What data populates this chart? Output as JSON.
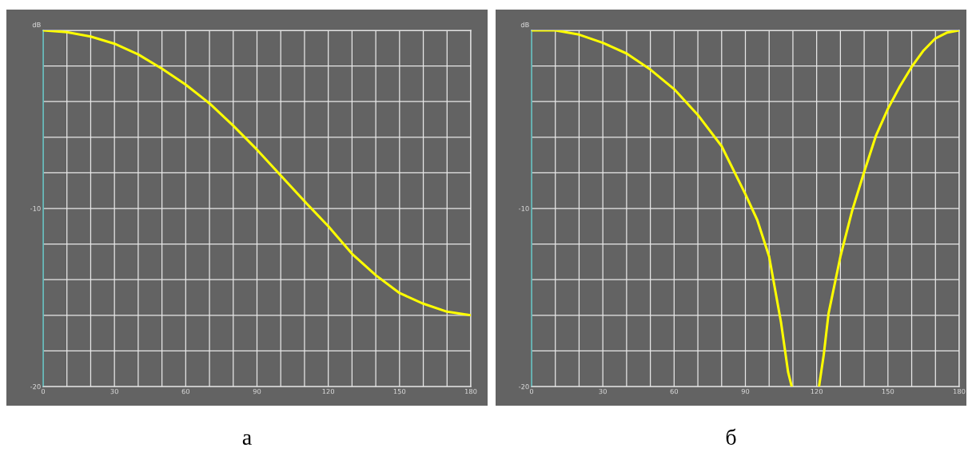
{
  "chart_data": [
    {
      "type": "line",
      "ylabel": "dB",
      "annotations": [
        "а"
      ],
      "grid": true,
      "xlim": [
        0,
        180
      ],
      "ylim": [
        -20,
        0
      ],
      "xticks": [
        0,
        {
          "value": 10,
          "label": null
        },
        {
          "value": 20,
          "label": null
        },
        30,
        {
          "value": 40,
          "label": null
        },
        {
          "value": 50,
          "label": null
        },
        60,
        {
          "value": 70,
          "label": null
        },
        {
          "value": 80,
          "label": null
        },
        90,
        {
          "value": 100,
          "label": null
        },
        {
          "value": 110,
          "label": null
        },
        120,
        {
          "value": 130,
          "label": null
        },
        {
          "value": 140,
          "label": null
        },
        150,
        {
          "value": 160,
          "label": null
        },
        {
          "value": 170,
          "label": null
        },
        180
      ],
      "yticks": [
        -20,
        {
          "value": -18,
          "label": null
        },
        {
          "value": -16,
          "label": null
        },
        {
          "value": -14,
          "label": null
        },
        {
          "value": -12,
          "label": null
        },
        -10,
        {
          "value": -8,
          "label": null
        },
        {
          "value": -6,
          "label": null
        },
        {
          "value": -4,
          "label": null
        },
        {
          "value": -2,
          "label": null
        },
        {
          "value": 0,
          "label": null
        }
      ],
      "x": [
        0,
        10,
        20,
        30,
        40,
        50,
        60,
        70,
        80,
        90,
        100,
        110,
        120,
        130,
        140,
        150,
        160,
        170,
        180
      ],
      "series": [
        {
          "color": "#ffff00",
          "values": [
            0,
            -0.1,
            -0.35,
            -0.75,
            -1.35,
            -2.15,
            -3.05,
            -4.1,
            -5.35,
            -6.7,
            -8.15,
            -9.6,
            -11.0,
            -12.55,
            -13.75,
            -14.75,
            -15.35,
            -15.8,
            -16.0
          ]
        }
      ]
    },
    {
      "type": "line",
      "ylabel": "dB",
      "annotations": [
        "б"
      ],
      "grid": true,
      "xlim": [
        0,
        180
      ],
      "ylim": [
        -20,
        0
      ],
      "xticks": [
        0,
        {
          "value": 10,
          "label": null
        },
        {
          "value": 20,
          "label": null
        },
        30,
        {
          "value": 40,
          "label": null
        },
        {
          "value": 50,
          "label": null
        },
        60,
        {
          "value": 70,
          "label": null
        },
        {
          "value": 80,
          "label": null
        },
        90,
        {
          "value": 100,
          "label": null
        },
        {
          "value": 110,
          "label": null
        },
        120,
        {
          "value": 130,
          "label": null
        },
        {
          "value": 140,
          "label": null
        },
        150,
        {
          "value": 160,
          "label": null
        },
        {
          "value": 170,
          "label": null
        },
        180
      ],
      "yticks": [
        -20,
        {
          "value": -18,
          "label": null
        },
        {
          "value": -16,
          "label": null
        },
        {
          "value": -14,
          "label": null
        },
        {
          "value": -12,
          "label": null
        },
        -10,
        {
          "value": -8,
          "label": null
        },
        {
          "value": -6,
          "label": null
        },
        {
          "value": -4,
          "label": null
        },
        {
          "value": -2,
          "label": null
        },
        {
          "value": 0,
          "label": null
        }
      ],
      "x": [
        0,
        10,
        20,
        30,
        40,
        50,
        60,
        70,
        80,
        90,
        95,
        100,
        105,
        108,
        109.5,
        115,
        121,
        123,
        125,
        130,
        135,
        140,
        145,
        150,
        155,
        160,
        165,
        170,
        175,
        180
      ],
      "series": [
        {
          "color": "#ffff00",
          "values": [
            0,
            0,
            -0.24,
            -0.7,
            -1.3,
            -2.2,
            -3.3,
            -4.75,
            -6.5,
            -9.2,
            -10.65,
            -12.7,
            -16.4,
            -19.2,
            -20,
            null,
            -20,
            -18.2,
            -15.9,
            -12.7,
            -10.1,
            -7.95,
            -5.9,
            -4.4,
            -3.15,
            -2.05,
            -1.13,
            -0.45,
            -0.12,
            0
          ]
        }
      ]
    }
  ]
}
